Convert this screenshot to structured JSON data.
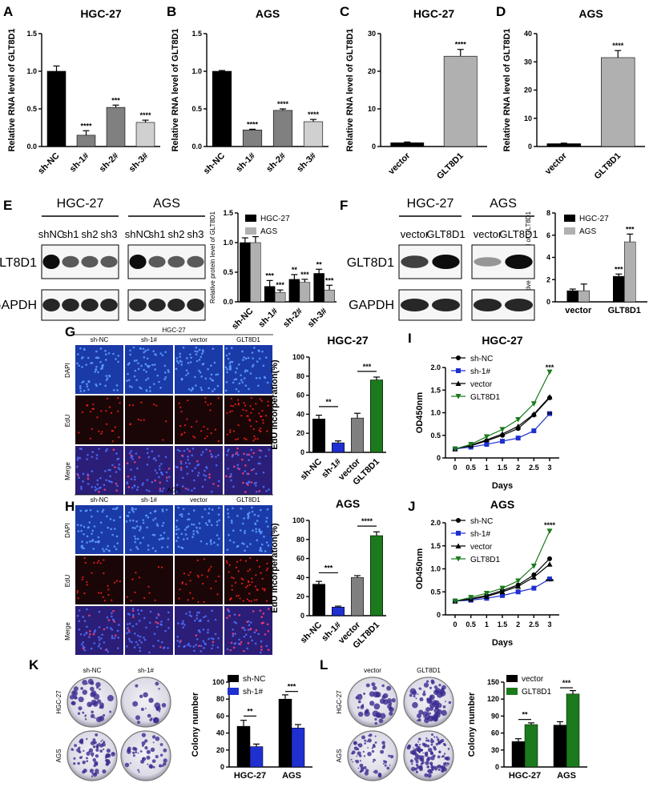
{
  "panels": [
    {
      "letter": "A",
      "title": "HGC-27",
      "ylabel": "Relative RNA level of GLT8D1"
    },
    {
      "letter": "B",
      "title": "AGS",
      "ylabel": "Relative RNA level of GLT8D1"
    },
    {
      "letter": "C",
      "title": "HGC-27",
      "ylabel": "Relative RNA level of GLT8D1"
    },
    {
      "letter": "D",
      "title": "AGS",
      "ylabel": "Relative RNA level of GLT8D1"
    },
    {
      "letter": "E"
    },
    {
      "letter": "F"
    },
    {
      "letter": "G"
    },
    {
      "letter": "H"
    },
    {
      "letter": "I",
      "title": "HGC-27"
    },
    {
      "letter": "J",
      "title": "AGS"
    },
    {
      "letter": "K"
    },
    {
      "letter": "L"
    }
  ],
  "blots": {
    "E": {
      "groups": [
        "HGC-27",
        "AGS"
      ],
      "lanes": [
        "shNC",
        "sh1",
        "sh2",
        "sh3",
        "shNC",
        "sh1",
        "sh2",
        "sh3"
      ],
      "rows": [
        "GLT8D1",
        "GAPDH"
      ]
    },
    "F": {
      "groups": [
        "HGC-27",
        "AGS"
      ],
      "lanes": [
        "vector",
        "GLT8D1",
        "vector",
        "GLT8D1"
      ],
      "rows": [
        "GLT8D1",
        "GAPDH"
      ]
    }
  },
  "imaging": {
    "G": {
      "group": "HGC-27",
      "cols": [
        "sh-NC",
        "sh-1#",
        "vector",
        "GLT8D1"
      ],
      "rows": [
        "DAPI",
        "EdU",
        "Merge"
      ]
    },
    "H": {
      "group": "AGS",
      "cols": [
        "sh-NC",
        "sh-1#",
        "vector",
        "GLT8D1"
      ],
      "rows": [
        "DAPI",
        "EdU",
        "Merge"
      ]
    },
    "K": {
      "cols": [
        "sh-NC",
        "sh-1#"
      ],
      "rows": [
        "HGC-27",
        "AGS"
      ]
    },
    "L": {
      "cols": [
        "vector",
        "GLT8D1"
      ],
      "rows": [
        "HGC-27",
        "AGS"
      ]
    }
  },
  "colors": {
    "black": "#000000",
    "gray1": "#808080",
    "gray2": "#d0d0d0",
    "blue": "#1f2fd0",
    "green": "#1b7a1b",
    "lightgray": "#b0b0b0"
  },
  "chart_data": [
    {
      "id": "A",
      "type": "bar",
      "title": "HGC-27",
      "ylabel": "Relative RNA level of GLT8D1",
      "categories": [
        "sh-NC",
        "sh-1#",
        "sh-2#",
        "sh-3#"
      ],
      "values": [
        1.0,
        0.15,
        0.52,
        0.32
      ],
      "errors": [
        0.07,
        0.06,
        0.03,
        0.03
      ],
      "sig": [
        "",
        "****",
        "***",
        "****"
      ],
      "ylim": [
        0,
        1.5
      ],
      "yticks": [
        "0.0",
        "0.5",
        "1.0",
        "1.5"
      ]
    },
    {
      "id": "B",
      "type": "bar",
      "title": "AGS",
      "ylabel": "Relative RNA level of GLT8D1",
      "categories": [
        "sh-NC",
        "sh-1#",
        "sh-2#",
        "sh-3#"
      ],
      "values": [
        1.0,
        0.22,
        0.48,
        0.33
      ],
      "errors": [
        0.01,
        0.01,
        0.02,
        0.03
      ],
      "sig": [
        "",
        "****",
        "****",
        "****"
      ],
      "ylim": [
        0,
        1.5
      ],
      "yticks": [
        "0.0",
        "0.5",
        "1.0",
        "1.5"
      ]
    },
    {
      "id": "C",
      "type": "bar",
      "title": "HGC-27",
      "ylabel": "Relative RNA level of GLT8D1",
      "categories": [
        "vector",
        "GLT8D1"
      ],
      "values": [
        1.0,
        24
      ],
      "errors": [
        0.2,
        1.8
      ],
      "sig": [
        "",
        "****"
      ],
      "ylim": [
        0,
        30
      ],
      "yticks": [
        "0",
        "10",
        "20",
        "30"
      ]
    },
    {
      "id": "D",
      "type": "bar",
      "title": "AGS",
      "ylabel": "Relative RNA level of GLT8D1",
      "categories": [
        "vector",
        "GLT8D1"
      ],
      "values": [
        1.0,
        31.5
      ],
      "errors": [
        0.2,
        2.5
      ],
      "sig": [
        "",
        "****"
      ],
      "ylim": [
        0,
        40
      ],
      "yticks": [
        "0",
        "10",
        "20",
        "30",
        "40"
      ]
    },
    {
      "id": "E",
      "type": "bar",
      "ylabel": "Relative protein level of GLT8D1",
      "categories": [
        "sh-NC",
        "sh-1#",
        "sh-2#",
        "sh-3#"
      ],
      "series": [
        {
          "name": "HGC-27",
          "values": [
            1.0,
            0.26,
            0.38,
            0.48
          ],
          "errors": [
            0.08,
            0.1,
            0.08,
            0.07
          ],
          "sig": [
            "",
            "***",
            "**",
            "**"
          ]
        },
        {
          "name": "AGS",
          "values": [
            1.0,
            0.16,
            0.33,
            0.2
          ],
          "errors": [
            0.1,
            0.04,
            0.05,
            0.08
          ],
          "sig": [
            "",
            "***",
            "***",
            "***"
          ]
        }
      ],
      "ylim": [
        0,
        1.5
      ],
      "yticks": [
        "0.0",
        "0.5",
        "1.0",
        "1.5"
      ]
    },
    {
      "id": "F",
      "type": "bar",
      "ylabel": "Relative protein level of GLT8D1",
      "categories": [
        "vector",
        "GLT8D1"
      ],
      "series": [
        {
          "name": "HGC-27",
          "values": [
            1.0,
            2.3
          ],
          "errors": [
            0.15,
            0.2
          ],
          "sig": [
            "",
            "***"
          ]
        },
        {
          "name": "AGS",
          "values": [
            1.0,
            5.4
          ],
          "errors": [
            0.6,
            0.7
          ],
          "sig": [
            "",
            "***"
          ]
        }
      ],
      "ylim": [
        0,
        8
      ],
      "yticks": [
        "0",
        "2",
        "4",
        "6",
        "8"
      ]
    },
    {
      "id": "G",
      "type": "bar",
      "title": "HGC-27",
      "ylabel": "EdU incorperation(%)",
      "categories": [
        "sh-NC",
        "sh-1#",
        "vector",
        "GLT8D1"
      ],
      "values": [
        35,
        10,
        36,
        76
      ],
      "errors": [
        4,
        2,
        5,
        3
      ],
      "colors": [
        "#000000",
        "#1f2fd0",
        "#808080",
        "#1b7a1b"
      ],
      "brackets": [
        {
          "from": 0,
          "to": 1,
          "y": 48,
          "label": "**"
        },
        {
          "from": 2,
          "to": 3,
          "y": 85,
          "label": "***"
        }
      ],
      "ylim": [
        0,
        100
      ],
      "yticks": [
        "0",
        "20",
        "40",
        "60",
        "80",
        "100"
      ]
    },
    {
      "id": "H",
      "type": "bar",
      "title": "AGS",
      "ylabel": "EdU incorperation(%)",
      "categories": [
        "sh-NC",
        "sh-1#",
        "vector",
        "GLT8D1"
      ],
      "values": [
        33,
        9,
        40,
        84
      ],
      "errors": [
        3,
        1,
        2,
        4
      ],
      "colors": [
        "#000000",
        "#1f2fd0",
        "#808080",
        "#1b7a1b"
      ],
      "brackets": [
        {
          "from": 0,
          "to": 1,
          "y": 45,
          "label": "***"
        },
        {
          "from": 2,
          "to": 3,
          "y": 94,
          "label": "****"
        }
      ],
      "ylim": [
        0,
        100
      ],
      "yticks": [
        "0",
        "20",
        "40",
        "60",
        "80",
        "100"
      ]
    },
    {
      "id": "I",
      "type": "line",
      "title": "HGC-27",
      "xlabel": "Days",
      "ylabel": "OD450nm",
      "x": [
        0,
        0.5,
        1,
        1.5,
        2,
        2.5,
        3
      ],
      "series": [
        {
          "name": "sh-NC",
          "values": [
            0.2,
            0.27,
            0.38,
            0.5,
            0.65,
            0.95,
            1.33
          ]
        },
        {
          "name": "sh-1#",
          "values": [
            0.2,
            0.24,
            0.3,
            0.37,
            0.44,
            0.6,
            0.98
          ]
        },
        {
          "name": "vector",
          "values": [
            0.2,
            0.28,
            0.4,
            0.53,
            0.7,
            0.97,
            1.35
          ]
        },
        {
          "name": "GLT8D1",
          "values": [
            0.2,
            0.3,
            0.47,
            0.63,
            0.85,
            1.2,
            1.9
          ]
        }
      ],
      "ylim": [
        0,
        2.0
      ],
      "yticks": [
        "0",
        "0.5",
        "1.0",
        "1.5",
        "2.0"
      ],
      "xticks": [
        "0",
        "0.5",
        "1",
        "1.5",
        "2",
        "2.5",
        "3"
      ],
      "annotations": [
        {
          "label": "***",
          "x": 3,
          "y": 1.95
        },
        {
          "label": "**",
          "x": 3,
          "y": 0.9
        }
      ]
    },
    {
      "id": "J",
      "type": "line",
      "title": "AGS",
      "xlabel": "Days",
      "ylabel": "OD450nm",
      "x": [
        0,
        0.5,
        1,
        1.5,
        2,
        2.5,
        3
      ],
      "series": [
        {
          "name": "sh-NC",
          "values": [
            0.3,
            0.35,
            0.42,
            0.53,
            0.65,
            0.87,
            1.22
          ]
        },
        {
          "name": "sh-1#",
          "values": [
            0.3,
            0.32,
            0.36,
            0.42,
            0.5,
            0.58,
            0.78
          ]
        },
        {
          "name": "vector",
          "values": [
            0.3,
            0.34,
            0.4,
            0.5,
            0.62,
            0.82,
            1.1
          ]
        },
        {
          "name": "GLT8D1",
          "values": [
            0.3,
            0.38,
            0.47,
            0.58,
            0.74,
            1.06,
            1.82
          ]
        }
      ],
      "ylim": [
        0,
        2.0
      ],
      "yticks": [
        "0",
        "0.5",
        "1.0",
        "1.5",
        "2.0"
      ],
      "xticks": [
        "0",
        "0.5",
        "1",
        "1.5",
        "2",
        "2.5",
        "3"
      ],
      "annotations": [
        {
          "label": "****",
          "x": 3,
          "y": 1.9
        },
        {
          "label": "***",
          "x": 3,
          "y": 0.67
        }
      ]
    },
    {
      "id": "K",
      "type": "bar",
      "ylabel": "Colony number",
      "categories": [
        "HGC-27",
        "AGS"
      ],
      "series": [
        {
          "name": "sh-NC",
          "values": [
            48,
            80
          ],
          "errors": [
            7,
            5
          ]
        },
        {
          "name": "sh-1#",
          "values": [
            24,
            46
          ],
          "errors": [
            3,
            4
          ]
        }
      ],
      "brackets": [
        {
          "cat": 0,
          "y": 60,
          "label": "**"
        },
        {
          "cat": 1,
          "y": 89,
          "label": "***"
        }
      ],
      "ylim": [
        0,
        100
      ],
      "yticks": [
        "0",
        "20",
        "40",
        "60",
        "80",
        "100"
      ]
    },
    {
      "id": "L",
      "type": "bar",
      "ylabel": "Colony number",
      "categories": [
        "HGC-27",
        "AGS"
      ],
      "series": [
        {
          "name": "vector",
          "values": [
            45,
            74
          ],
          "errors": [
            5,
            6
          ]
        },
        {
          "name": "GLT8D1",
          "values": [
            75,
            129
          ],
          "errors": [
            3,
            6
          ]
        }
      ],
      "brackets": [
        {
          "cat": 0,
          "y": 84,
          "label": "**"
        },
        {
          "cat": 1,
          "y": 140,
          "label": "***"
        }
      ],
      "ylim": [
        0,
        150
      ],
      "yticks": [
        "0",
        "30",
        "60",
        "90",
        "120",
        "150"
      ]
    }
  ]
}
